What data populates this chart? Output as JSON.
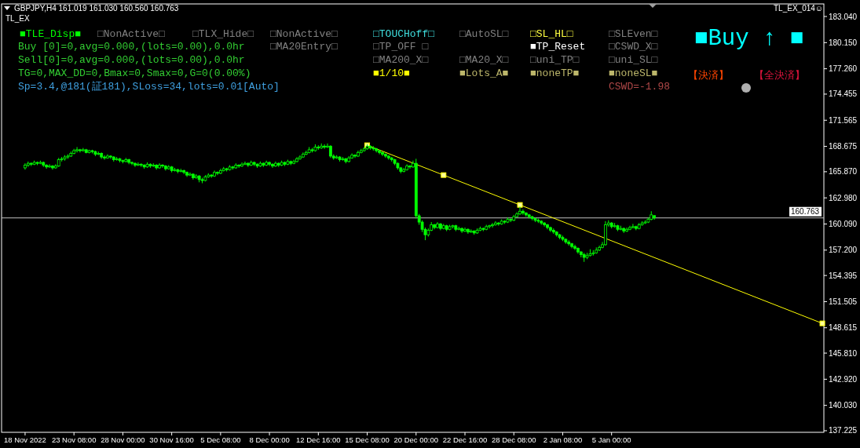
{
  "chart_data": {
    "type": "candlestick",
    "title": "GBPJPY,H4  161.019 161.030 160.560 160.763",
    "subtitle": "TL_EX",
    "annotations": [
      "■TLE_Disp■",
      "□NonActive□",
      "□TLX_Hide□",
      "□NonActive□",
      "□TOUCHoff□",
      "□AutoSL□",
      "□SL_HL□",
      "□SLEven□",
      "Buy [0]=0,avg=0.000,(lots=0.00),0.0hr",
      "□MA20Entry□",
      "□TP_OFF □",
      "■TP_Reset",
      "□CSWD_X□",
      "Sell[0]=0,avg=0.000,(lots=0.00),0.0hr",
      "□MA200_X□",
      "□MA20_X□",
      "□uni_TP□",
      "□uni_SL□",
      "TG=0,MAX_DD=0,Bmax=0,Smax=0,G=0(0.00%)",
      "■1/10■",
      "■Lots_A■",
      "■noneTP■",
      "■noneSL■",
      "Sp=3.4,@181(証181),SLoss=34,lots=0.01[Auto]",
      "CSWD=-1.98",
      "■Buy ↑ ■",
      "【決済】",
      "【全決済】",
      "TL_EX_014☺"
    ],
    "categories": [
      "18 Nov 2022",
      null,
      null,
      null,
      null,
      null,
      null,
      null,
      null,
      null,
      null,
      null,
      null,
      null,
      null,
      null,
      "23 Nov 08:00",
      null,
      null,
      null,
      null,
      null,
      null,
      null,
      null,
      null,
      null,
      null,
      null,
      null,
      null,
      null,
      "28 Nov 00:00",
      null,
      null,
      null,
      null,
      null,
      null,
      null,
      null,
      null,
      null,
      null,
      null,
      null,
      null,
      null,
      "30 Nov 16:00",
      null,
      null,
      null,
      null,
      null,
      null,
      null,
      null,
      null,
      null,
      null,
      null,
      null,
      null,
      null,
      "5 Dec 08:00",
      null,
      null,
      null,
      null,
      null,
      null,
      null,
      null,
      null,
      null,
      null,
      null,
      null,
      null,
      null,
      "8 Dec 00:00",
      null,
      null,
      null,
      null,
      null,
      null,
      null,
      null,
      null,
      null,
      null,
      null,
      null,
      null,
      null,
      "12 Dec 16:00",
      null,
      null,
      null,
      null,
      null,
      null,
      null,
      null,
      null,
      null,
      null,
      null,
      null,
      null,
      null,
      "15 Dec 08:00",
      null,
      null,
      null,
      null,
      null,
      null,
      null,
      null,
      null,
      null,
      null,
      null,
      null,
      null,
      null,
      "20 Dec 00:00",
      null,
      null,
      null,
      null,
      null,
      null,
      null,
      null,
      null,
      null,
      null,
      null,
      null,
      null,
      null,
      "22 Dec 16:00",
      null,
      null,
      null,
      null,
      null,
      null,
      null,
      null,
      null,
      null,
      null,
      null,
      null,
      null,
      null,
      "28 Dec 08:00",
      null,
      null,
      null,
      null,
      null,
      null,
      null,
      null,
      null,
      null,
      null,
      null,
      null,
      null,
      null,
      "2 Jan 08:00",
      null,
      null,
      null,
      null,
      null,
      null,
      null,
      null,
      null,
      null,
      null,
      null,
      null,
      null,
      null,
      "5 Jan 00:00",
      null,
      null,
      null,
      null,
      null,
      null,
      null,
      null,
      null,
      null,
      null,
      null,
      null,
      null,
      null,
      null,
      null,
      null,
      null,
      null,
      null,
      null,
      null,
      null,
      null,
      null,
      null,
      null,
      null,
      null,
      null,
      null,
      null,
      null,
      null,
      null,
      null,
      null,
      null,
      null,
      null,
      null,
      null,
      null,
      null,
      null,
      null,
      null,
      null,
      null,
      null,
      null,
      null,
      null,
      null,
      null,
      null,
      null,
      null,
      null,
      null,
      null,
      null,
      null,
      null,
      null,
      null,
      null,
      null
    ],
    "series": [
      {
        "color": "#00ff00",
        "ohlc": [
          [
            166.3,
            166.8,
            166.1,
            166.6
          ],
          [
            166.6,
            167.0,
            166.4,
            166.8
          ],
          [
            166.8,
            166.9,
            166.5,
            166.7
          ],
          [
            166.7,
            167.1,
            166.6,
            166.9
          ],
          [
            166.9,
            167.0,
            166.6,
            166.8
          ],
          [
            166.8,
            167.1,
            166.7,
            166.9
          ],
          [
            166.9,
            167.0,
            166.4,
            166.6
          ],
          [
            166.6,
            166.7,
            166.2,
            166.4
          ],
          [
            166.4,
            166.7,
            166.3,
            166.5
          ],
          [
            166.5,
            166.6,
            166.1,
            166.3
          ],
          [
            166.3,
            166.7,
            166.2,
            166.5
          ],
          [
            166.5,
            167.4,
            166.4,
            167.2
          ],
          [
            167.2,
            167.5,
            167.0,
            167.3
          ],
          [
            167.3,
            167.7,
            167.1,
            167.5
          ],
          [
            167.5,
            167.8,
            167.3,
            167.6
          ],
          [
            167.6,
            168.1,
            167.5,
            167.9
          ],
          [
            167.9,
            168.4,
            167.8,
            168.2
          ],
          [
            168.2,
            168.6,
            168.0,
            168.3
          ],
          [
            168.3,
            168.4,
            168.0,
            168.2
          ],
          [
            168.2,
            168.5,
            168.1,
            168.3
          ],
          [
            168.3,
            168.4,
            167.9,
            168.0
          ],
          [
            168.0,
            168.3,
            167.9,
            168.2
          ],
          [
            168.2,
            168.3,
            167.9,
            168.1
          ],
          [
            168.1,
            168.2,
            167.6,
            167.8
          ],
          [
            167.8,
            168.1,
            167.7,
            167.9
          ],
          [
            167.9,
            168.0,
            167.3,
            167.5
          ],
          [
            167.5,
            167.7,
            167.2,
            167.4
          ],
          [
            167.4,
            167.8,
            167.3,
            167.6
          ],
          [
            167.6,
            167.7,
            167.3,
            167.5
          ],
          [
            167.5,
            167.6,
            167.0,
            167.2
          ],
          [
            167.2,
            167.5,
            167.1,
            167.3
          ],
          [
            167.3,
            167.4,
            166.9,
            167.1
          ],
          [
            167.1,
            167.2,
            166.8,
            167.0
          ],
          [
            167.0,
            167.4,
            166.9,
            167.2
          ],
          [
            167.2,
            167.3,
            166.7,
            166.9
          ],
          [
            166.9,
            167.0,
            166.6,
            166.8
          ],
          [
            166.8,
            166.9,
            166.4,
            166.6
          ],
          [
            166.6,
            166.9,
            166.5,
            166.7
          ],
          [
            166.7,
            166.8,
            166.4,
            166.6
          ],
          [
            166.6,
            166.7,
            166.2,
            166.4
          ],
          [
            166.4,
            166.9,
            166.3,
            166.7
          ],
          [
            166.7,
            166.8,
            166.3,
            166.5
          ],
          [
            166.5,
            166.8,
            166.4,
            166.6
          ],
          [
            166.6,
            166.7,
            166.1,
            166.3
          ],
          [
            166.3,
            166.8,
            166.2,
            166.6
          ],
          [
            166.6,
            166.7,
            166.3,
            166.5
          ],
          [
            166.5,
            166.6,
            166.0,
            166.2
          ],
          [
            166.2,
            166.6,
            166.1,
            166.4
          ],
          [
            166.4,
            166.5,
            165.8,
            166.0
          ],
          [
            166.0,
            166.3,
            165.9,
            166.1
          ],
          [
            166.1,
            166.2,
            165.7,
            165.9
          ],
          [
            165.9,
            166.2,
            165.8,
            166.0
          ],
          [
            166.0,
            166.1,
            165.6,
            165.8
          ],
          [
            165.8,
            165.9,
            165.3,
            165.5
          ],
          [
            165.5,
            165.8,
            165.4,
            165.6
          ],
          [
            165.6,
            165.7,
            165.0,
            165.2
          ],
          [
            165.2,
            165.6,
            165.1,
            165.4
          ],
          [
            165.4,
            165.5,
            164.7,
            165.0
          ],
          [
            165.0,
            165.2,
            164.6,
            164.9
          ],
          [
            164.9,
            165.5,
            164.8,
            165.3
          ],
          [
            165.3,
            165.7,
            165.2,
            165.5
          ],
          [
            165.5,
            165.6,
            165.2,
            165.4
          ],
          [
            165.4,
            166.0,
            165.3,
            165.8
          ],
          [
            165.8,
            165.9,
            165.5,
            165.7
          ],
          [
            165.7,
            166.2,
            165.6,
            166.0
          ],
          [
            166.0,
            166.4,
            165.9,
            166.2
          ],
          [
            166.2,
            166.3,
            165.9,
            166.1
          ],
          [
            166.1,
            166.6,
            166.0,
            166.4
          ],
          [
            166.4,
            166.5,
            166.1,
            166.3
          ],
          [
            166.3,
            166.8,
            166.2,
            166.6
          ],
          [
            166.6,
            166.7,
            166.3,
            166.5
          ],
          [
            166.5,
            166.9,
            166.4,
            166.7
          ],
          [
            166.7,
            167.0,
            166.6,
            166.8
          ],
          [
            166.8,
            166.9,
            166.4,
            166.6
          ],
          [
            166.6,
            167.1,
            166.5,
            166.9
          ],
          [
            166.9,
            167.0,
            166.5,
            166.7
          ],
          [
            166.7,
            166.8,
            166.3,
            166.5
          ],
          [
            166.5,
            167.0,
            166.4,
            166.8
          ],
          [
            166.8,
            166.9,
            166.4,
            166.6
          ],
          [
            166.6,
            167.1,
            166.5,
            166.9
          ],
          [
            166.9,
            167.0,
            166.5,
            166.7
          ],
          [
            166.7,
            166.8,
            166.3,
            166.5
          ],
          [
            166.5,
            167.0,
            166.4,
            166.8
          ],
          [
            166.8,
            166.9,
            166.4,
            166.6
          ],
          [
            166.6,
            167.1,
            166.5,
            166.9
          ],
          [
            166.9,
            167.0,
            166.5,
            166.7
          ],
          [
            166.7,
            167.2,
            166.6,
            167.0
          ],
          [
            167.0,
            167.1,
            166.6,
            166.8
          ],
          [
            166.8,
            167.2,
            166.7,
            167.0
          ],
          [
            167.0,
            167.5,
            166.9,
            167.3
          ],
          [
            167.3,
            167.7,
            167.2,
            167.5
          ],
          [
            167.5,
            168.0,
            167.4,
            167.8
          ],
          [
            167.8,
            168.2,
            167.7,
            168.0
          ],
          [
            168.0,
            168.6,
            167.9,
            168.3
          ],
          [
            168.3,
            168.5,
            168.0,
            168.2
          ],
          [
            168.2,
            168.9,
            168.1,
            168.6
          ],
          [
            168.6,
            168.8,
            168.3,
            168.5
          ],
          [
            168.5,
            169.0,
            168.4,
            168.7
          ],
          [
            168.7,
            168.9,
            168.4,
            168.6
          ],
          [
            168.6,
            169.0,
            168.5,
            168.7
          ],
          [
            168.7,
            168.8,
            167.4,
            167.6
          ],
          [
            167.6,
            167.8,
            167.2,
            167.4
          ],
          [
            167.4,
            167.7,
            167.3,
            167.5
          ],
          [
            167.5,
            167.6,
            167.0,
            167.2
          ],
          [
            167.2,
            167.5,
            167.1,
            167.3
          ],
          [
            167.3,
            167.4,
            166.8,
            167.0
          ],
          [
            167.0,
            167.6,
            166.9,
            167.4
          ],
          [
            167.4,
            167.9,
            167.3,
            167.7
          ],
          [
            167.7,
            167.8,
            167.4,
            167.6
          ],
          [
            167.6,
            168.2,
            167.5,
            168.0
          ],
          [
            168.0,
            168.4,
            167.9,
            168.2
          ],
          [
            168.2,
            168.6,
            168.1,
            168.4
          ],
          [
            168.4,
            168.9,
            168.3,
            168.7
          ],
          [
            168.7,
            168.8,
            168.3,
            168.5
          ],
          [
            168.5,
            168.7,
            168.2,
            168.4
          ],
          [
            168.4,
            168.5,
            168.0,
            168.2
          ],
          [
            168.2,
            168.3,
            167.8,
            168.0
          ],
          [
            168.0,
            168.1,
            167.6,
            167.8
          ],
          [
            167.8,
            167.9,
            167.4,
            167.6
          ],
          [
            167.6,
            167.7,
            167.2,
            167.4
          ],
          [
            167.4,
            167.5,
            167.0,
            167.2
          ],
          [
            167.2,
            167.3,
            166.6,
            166.8
          ],
          [
            166.8,
            166.9,
            166.1,
            166.3
          ],
          [
            166.3,
            166.4,
            165.7,
            165.9
          ],
          [
            165.9,
            166.3,
            165.8,
            166.1
          ],
          [
            166.1,
            166.7,
            166.0,
            166.5
          ],
          [
            166.5,
            166.6,
            166.2,
            166.4
          ],
          [
            166.4,
            167.1,
            166.3,
            166.8
          ],
          [
            166.8,
            167.3,
            160.7,
            161.0
          ],
          [
            161.0,
            161.2,
            160.0,
            160.3
          ],
          [
            160.3,
            160.5,
            159.2,
            159.5
          ],
          [
            159.5,
            159.7,
            158.3,
            158.9
          ],
          [
            158.9,
            159.6,
            158.7,
            159.4
          ],
          [
            159.4,
            160.3,
            159.3,
            160.0
          ],
          [
            160.0,
            160.1,
            159.5,
            159.7
          ],
          [
            159.7,
            160.3,
            159.6,
            160.1
          ],
          [
            160.1,
            160.2,
            159.4,
            159.6
          ],
          [
            159.6,
            160.1,
            159.5,
            159.9
          ],
          [
            159.9,
            160.0,
            159.3,
            159.5
          ],
          [
            159.5,
            160.0,
            159.4,
            159.8
          ],
          [
            159.8,
            160.0,
            159.6,
            159.9
          ],
          [
            159.9,
            160.0,
            159.3,
            159.5
          ],
          [
            159.5,
            159.8,
            159.4,
            159.6
          ],
          [
            159.6,
            159.7,
            159.1,
            159.3
          ],
          [
            159.3,
            159.7,
            159.2,
            159.5
          ],
          [
            159.5,
            159.6,
            159.0,
            159.2
          ],
          [
            159.2,
            159.5,
            159.1,
            159.3
          ],
          [
            159.3,
            159.4,
            158.9,
            159.1
          ],
          [
            159.1,
            159.6,
            159.0,
            159.4
          ],
          [
            159.4,
            159.8,
            159.3,
            159.6
          ],
          [
            159.6,
            159.7,
            159.3,
            159.5
          ],
          [
            159.5,
            160.0,
            159.4,
            159.8
          ],
          [
            159.8,
            160.0,
            159.6,
            159.9
          ],
          [
            159.9,
            160.2,
            159.7,
            160.0
          ],
          [
            160.0,
            160.4,
            159.9,
            160.2
          ],
          [
            160.2,
            160.3,
            159.9,
            160.1
          ],
          [
            160.1,
            160.6,
            160.0,
            160.4
          ],
          [
            160.4,
            160.5,
            160.1,
            160.3
          ],
          [
            160.3,
            160.8,
            160.2,
            160.6
          ],
          [
            160.6,
            160.7,
            160.3,
            160.5
          ],
          [
            160.5,
            161.1,
            160.4,
            160.9
          ],
          [
            160.9,
            161.4,
            160.8,
            161.2
          ],
          [
            161.2,
            162.0,
            161.1,
            161.5
          ],
          [
            161.5,
            161.7,
            161.1,
            161.3
          ],
          [
            161.3,
            161.4,
            160.9,
            161.1
          ],
          [
            161.1,
            161.2,
            160.7,
            160.9
          ],
          [
            160.9,
            161.0,
            160.5,
            160.7
          ],
          [
            160.7,
            160.8,
            160.3,
            160.5
          ],
          [
            160.5,
            160.7,
            160.2,
            160.4
          ],
          [
            160.4,
            160.5,
            160.0,
            160.2
          ],
          [
            160.2,
            160.3,
            159.8,
            160.0
          ],
          [
            160.0,
            160.1,
            159.5,
            159.7
          ],
          [
            159.7,
            159.8,
            159.2,
            159.4
          ],
          [
            159.4,
            159.6,
            159.0,
            159.2
          ],
          [
            159.2,
            159.3,
            158.7,
            158.9
          ],
          [
            158.9,
            159.0,
            158.4,
            158.6
          ],
          [
            158.6,
            158.8,
            158.2,
            158.4
          ],
          [
            158.4,
            158.5,
            157.9,
            158.1
          ],
          [
            158.1,
            158.3,
            157.7,
            157.9
          ],
          [
            157.9,
            158.0,
            157.4,
            157.6
          ],
          [
            157.6,
            157.8,
            157.2,
            157.4
          ],
          [
            157.4,
            157.5,
            156.8,
            157.0
          ],
          [
            157.0,
            157.1,
            156.4,
            156.7
          ],
          [
            156.7,
            156.9,
            155.9,
            156.4
          ],
          [
            156.4,
            156.9,
            156.2,
            156.6
          ],
          [
            156.6,
            157.3,
            156.5,
            156.8
          ],
          [
            156.8,
            157.2,
            156.6,
            156.9
          ],
          [
            156.9,
            157.5,
            156.8,
            157.2
          ],
          [
            157.2,
            157.7,
            157.1,
            157.5
          ],
          [
            157.5,
            158.1,
            157.4,
            157.8
          ],
          [
            157.8,
            160.4,
            157.7,
            160.0
          ],
          [
            160.0,
            160.5,
            159.8,
            160.2
          ],
          [
            160.2,
            160.3,
            159.6,
            159.8
          ],
          [
            159.8,
            160.2,
            159.7,
            159.9
          ],
          [
            159.9,
            160.0,
            159.3,
            159.5
          ],
          [
            159.5,
            159.9,
            159.4,
            159.6
          ],
          [
            159.6,
            159.7,
            159.1,
            159.3
          ],
          [
            159.3,
            159.7,
            159.2,
            159.5
          ],
          [
            159.5,
            159.9,
            159.4,
            159.7
          ],
          [
            159.7,
            160.1,
            159.6,
            159.8
          ],
          [
            159.8,
            159.9,
            159.4,
            159.6
          ],
          [
            159.6,
            160.2,
            159.5,
            160.0
          ],
          [
            160.0,
            160.4,
            159.9,
            160.2
          ],
          [
            160.2,
            160.5,
            160.1,
            160.3
          ],
          [
            160.3,
            160.8,
            160.2,
            160.6
          ],
          [
            160.6,
            161.5,
            160.5,
            161.1
          ],
          [
            161.019,
            161.03,
            160.56,
            160.763
          ],
          null,
          null,
          null,
          null,
          null,
          null,
          null,
          null,
          null,
          null,
          null,
          null,
          null,
          null,
          null,
          null,
          null,
          null,
          null,
          null,
          null,
          null,
          null,
          null,
          null,
          null,
          null,
          null,
          null,
          null,
          null,
          null,
          null,
          null,
          null,
          null,
          null,
          null,
          null,
          null,
          null,
          null,
          null,
          null,
          null,
          null,
          null,
          null,
          null,
          null,
          null,
          null,
          null,
          null,
          null
        ]
      },
      {
        "type": "line",
        "color": "#ffff00",
        "marker": "square",
        "values": [
          null,
          null,
          null,
          null,
          null,
          null,
          null,
          null,
          null,
          null,
          null,
          null,
          null,
          null,
          null,
          null,
          null,
          null,
          null,
          null,
          null,
          null,
          null,
          null,
          null,
          null,
          null,
          null,
          null,
          null,
          null,
          null,
          null,
          null,
          null,
          null,
          null,
          null,
          null,
          null,
          null,
          null,
          null,
          null,
          null,
          null,
          null,
          null,
          null,
          null,
          null,
          null,
          null,
          null,
          null,
          null,
          null,
          null,
          null,
          null,
          null,
          null,
          null,
          null,
          null,
          null,
          null,
          null,
          null,
          null,
          null,
          null,
          null,
          null,
          null,
          null,
          null,
          null,
          null,
          null,
          null,
          null,
          null,
          null,
          null,
          null,
          null,
          null,
          null,
          null,
          null,
          null,
          null,
          null,
          null,
          null,
          null,
          null,
          null,
          null,
          null,
          null,
          null,
          null,
          null,
          null,
          null,
          null,
          null,
          null,
          null,
          null,
          168.8,
          null,
          null,
          null,
          null,
          null,
          null,
          null,
          null,
          null,
          null,
          null,
          null,
          null,
          null,
          null,
          null,
          null,
          null,
          null,
          null,
          null,
          null,
          null,
          null,
          165.5,
          null,
          null,
          null,
          null,
          null,
          null,
          null,
          null,
          null,
          null,
          null,
          null,
          null,
          null,
          null,
          null,
          null,
          null,
          null,
          null,
          null,
          null,
          null,
          null,
          162.2,
          null,
          null,
          null,
          null,
          null,
          null,
          null,
          null,
          null,
          null,
          null,
          null,
          null,
          null,
          null,
          null,
          null,
          null,
          null,
          null,
          null,
          null,
          null,
          null,
          null,
          null,
          null,
          null,
          null,
          null,
          null,
          null,
          null,
          null,
          null,
          null,
          null,
          null,
          null,
          null,
          null,
          null,
          null,
          null,
          null,
          null,
          null,
          null,
          null,
          null,
          null,
          null,
          null,
          null,
          null,
          null,
          null,
          null,
          null,
          null,
          null,
          null,
          null,
          null,
          null,
          null,
          null,
          null,
          null,
          null,
          null,
          null,
          null,
          null,
          null,
          null,
          null,
          null,
          null,
          null,
          null,
          null,
          null,
          null,
          null,
          null,
          null,
          null,
          null,
          null,
          null,
          null,
          null,
          null,
          null,
          null,
          null,
          null,
          149.1
        ]
      }
    ],
    "ylim": [
      137.05,
      184.43
    ],
    "yticks": [
      {
        "value": 183.04,
        "label": "183.040"
      },
      {
        "value": 180.15,
        "label": "180.150"
      },
      {
        "value": 177.26,
        "label": "177.260"
      },
      {
        "value": 174.455,
        "label": "174.455"
      },
      {
        "value": 171.565,
        "label": "171.565"
      },
      {
        "value": 168.675,
        "label": "168.675"
      },
      {
        "value": 165.87,
        "label": "165.870"
      },
      {
        "value": 162.98,
        "label": "162.980"
      },
      {
        "value": 160.09,
        "label": "160.090"
      },
      {
        "value": 157.2,
        "label": "157.200"
      },
      {
        "value": 154.395,
        "label": "154.395"
      },
      {
        "value": 151.505,
        "label": "151.505"
      },
      {
        "value": 148.615,
        "label": "148.615"
      },
      {
        "value": 145.81,
        "label": "145.810"
      },
      {
        "value": 142.92,
        "label": "142.920"
      },
      {
        "value": 140.03,
        "label": "140.030"
      },
      {
        "value": 137.225,
        "label": "137.225"
      }
    ],
    "ref_lines": [
      {
        "axis": "y",
        "value": 160.763,
        "label": "160.763",
        "color": "#c0c0c0"
      }
    ]
  }
}
